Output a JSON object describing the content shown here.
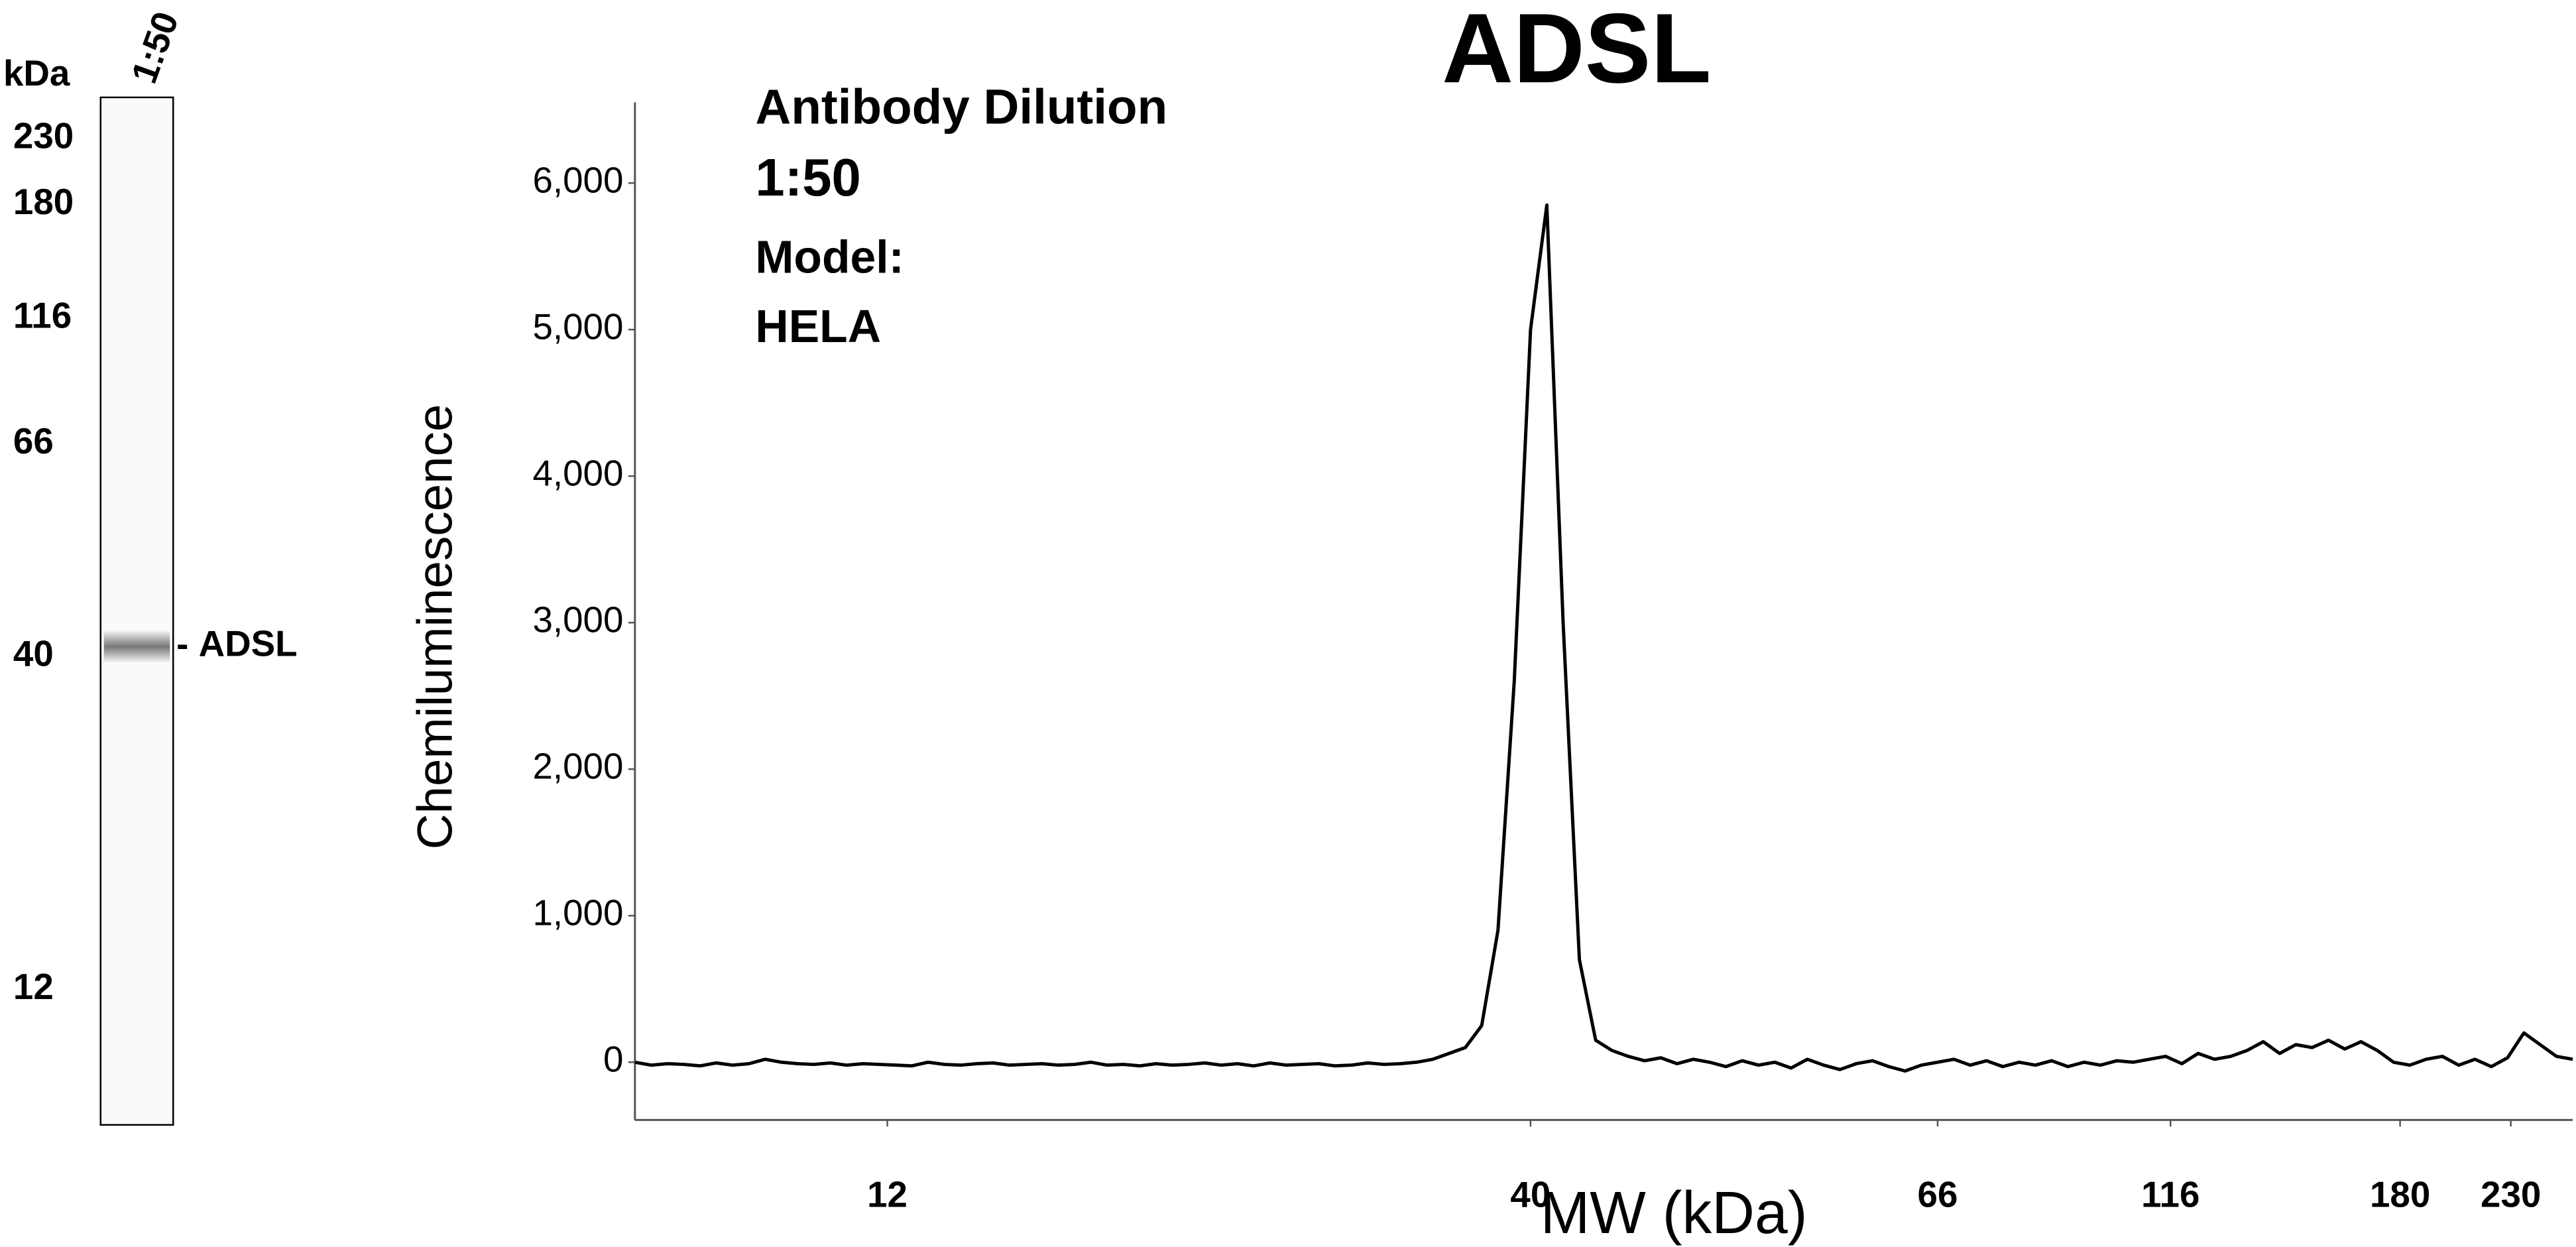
{
  "blot": {
    "unit_label": "kDa",
    "lane_label": "1:50",
    "markers": [
      "230",
      "180",
      "116",
      "66",
      "40",
      "12"
    ],
    "band_label": "ADSL"
  },
  "chart_data": {
    "type": "line",
    "title": "ADSL",
    "annotations": [
      "Antibody Dilution",
      "1:50",
      "Model:",
      "HELA"
    ],
    "y_label": "Chemiluminescence",
    "x_label": "MW (kDa)",
    "color": "#000000",
    "values": [
      0,
      -20,
      -10,
      -15,
      -25,
      -5,
      -20,
      -10,
      20,
      0,
      -10,
      -15,
      -5,
      -20,
      -10,
      -15,
      -20,
      -25,
      0,
      -15,
      -20,
      -10,
      -5,
      -20,
      -15,
      -10,
      -20,
      -15,
      0,
      -20,
      -15,
      -25,
      -10,
      -20,
      -15,
      -5,
      -20,
      -10,
      -25,
      -5,
      -20,
      -15,
      -10,
      -25,
      -20,
      -5,
      -15,
      -10,
      0,
      20,
      60,
      100,
      250,
      900,
      2600,
      5000,
      5850,
      3000,
      700,
      150,
      80,
      40,
      10,
      30,
      -10,
      20,
      0,
      -30,
      10,
      -20,
      0,
      -40,
      20,
      -20,
      -50,
      -10,
      10,
      -30,
      -60,
      -20,
      0,
      20,
      -20,
      10,
      -30,
      0,
      -20,
      10,
      -30,
      0,
      -20,
      10,
      0,
      20,
      40,
      -10,
      60,
      20,
      40,
      80,
      140,
      60,
      120,
      100,
      150,
      90,
      140,
      80,
      0,
      -20,
      20,
      40,
      -20,
      20,
      -30,
      30,
      200,
      120,
      40,
      20
    ],
    "xlim": [
      0,
      119
    ],
    "xticks": [
      {
        "value": 15.5,
        "label": "12"
      },
      {
        "value": 55,
        "label": "40"
      },
      {
        "value": 80,
        "label": "66"
      },
      {
        "value": 94.3,
        "label": "116"
      },
      {
        "value": 108.4,
        "label": "180"
      },
      {
        "value": 115.2,
        "label": "230"
      }
    ],
    "ylim": [
      -394,
      6551
    ],
    "yticks": [
      0,
      {
        "value": 1000,
        "label": "1,000"
      },
      {
        "value": 2000,
        "label": "2,000"
      },
      {
        "value": 3000,
        "label": "3,000"
      },
      {
        "value": 4000,
        "label": "4,000"
      },
      {
        "value": 5000,
        "label": "5,000"
      },
      {
        "value": 6000,
        "label": "6,000"
      }
    ],
    "grid": false
  }
}
